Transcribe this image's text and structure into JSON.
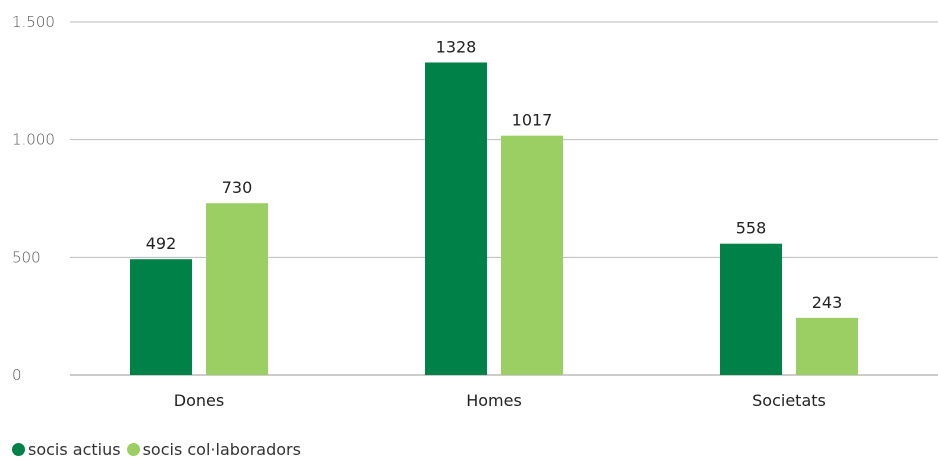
{
  "chart_data": {
    "type": "bar",
    "categories": [
      "Dones",
      "Homes",
      "Societats"
    ],
    "series": [
      {
        "name": "socis actius",
        "values": [
          492,
          1328,
          558
        ],
        "color": "#008148"
      },
      {
        "name": "socis col·laboradors",
        "values": [
          730,
          1017,
          243
        ],
        "color": "#9bcf63"
      }
    ],
    "ylim": [
      0,
      1500
    ],
    "yticks": [
      0,
      500,
      1000,
      1500
    ],
    "ytick_labels": [
      "0",
      "500",
      "1.000",
      "1.500"
    ],
    "grid": true,
    "legend_position": "bottom-left"
  }
}
